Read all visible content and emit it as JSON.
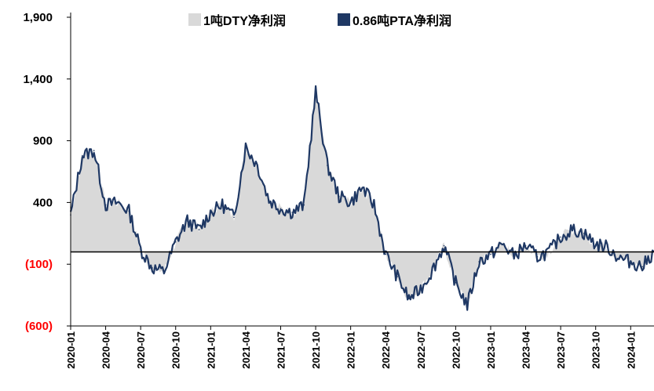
{
  "chart_data": {
    "type": "area",
    "title": "",
    "xlabel": "",
    "ylabel": "",
    "ylim": [
      -600,
      1900
    ],
    "y_ticks": [
      {
        "value": 1900,
        "label": "1,900",
        "color": "#000000"
      },
      {
        "value": 1400,
        "label": "1,400",
        "color": "#000000"
      },
      {
        "value": 900,
        "label": "900",
        "color": "#000000"
      },
      {
        "value": 400,
        "label": "400",
        "color": "#000000"
      },
      {
        "value": -100,
        "label": "(100)",
        "color": "#ff0000"
      },
      {
        "value": -600,
        "label": "(600)",
        "color": "#ff0000"
      }
    ],
    "x_ticks": [
      "2020-01",
      "2020-04",
      "2020-07",
      "2020-10",
      "2021-01",
      "2021-04",
      "2021-07",
      "2021-10",
      "2022-01",
      "2022-04",
      "2022-07",
      "2022-10",
      "2023-01",
      "2023-04",
      "2023-07",
      "2023-10",
      "2024-01"
    ],
    "x_start": "2020-01",
    "x_end": "2024-03",
    "grid": false,
    "legend_position": "top",
    "series": [
      {
        "name": "1吨DTY净利润",
        "kind": "area",
        "color": "#d9d9d9",
        "x": [
          "2020-01",
          "2020-02",
          "2020-03",
          "2020-04",
          "2020-05",
          "2020-06",
          "2020-07",
          "2020-08",
          "2020-09",
          "2020-10",
          "2020-11",
          "2020-12",
          "2021-01",
          "2021-02",
          "2021-03",
          "2021-04",
          "2021-05",
          "2021-06",
          "2021-07",
          "2021-08",
          "2021-09",
          "2021-10",
          "2021-11",
          "2021-12",
          "2022-01",
          "2022-02",
          "2022-03",
          "2022-04",
          "2022-05",
          "2022-06",
          "2022-07",
          "2022-08",
          "2022-09",
          "2022-10",
          "2022-11",
          "2022-12",
          "2023-01",
          "2023-02",
          "2023-03",
          "2023-04",
          "2023-05",
          "2023-06",
          "2023-07",
          "2023-08",
          "2023-09",
          "2023-10",
          "2023-11",
          "2023-12",
          "2024-01",
          "2024-02",
          "2024-03"
        ],
        "values": [
          300,
          780,
          820,
          380,
          400,
          330,
          20,
          -130,
          -160,
          80,
          250,
          180,
          320,
          380,
          280,
          850,
          700,
          420,
          350,
          320,
          380,
          1300,
          700,
          450,
          400,
          520,
          380,
          -20,
          -200,
          -380,
          -300,
          -150,
          50,
          -250,
          -430,
          -80,
          -20,
          60,
          -30,
          50,
          -40,
          0,
          120,
          180,
          150,
          60,
          40,
          -50,
          -80,
          -120,
          0
        ]
      },
      {
        "name": "0.86吨PTA净利润",
        "kind": "line",
        "color": "#1f3864",
        "x": [
          "2020-01",
          "2020-02",
          "2020-03",
          "2020-04",
          "2020-05",
          "2020-06",
          "2020-07",
          "2020-08",
          "2020-09",
          "2020-10",
          "2020-11",
          "2020-12",
          "2021-01",
          "2021-02",
          "2021-03",
          "2021-04",
          "2021-05",
          "2021-06",
          "2021-07",
          "2021-08",
          "2021-09",
          "2021-10",
          "2021-11",
          "2021-12",
          "2022-01",
          "2022-02",
          "2022-03",
          "2022-04",
          "2022-05",
          "2022-06",
          "2022-07",
          "2022-08",
          "2022-09",
          "2022-10",
          "2022-11",
          "2022-12",
          "2023-01",
          "2023-02",
          "2023-03",
          "2023-04",
          "2023-05",
          "2023-06",
          "2023-07",
          "2023-08",
          "2023-09",
          "2023-10",
          "2023-11",
          "2023-12",
          "2024-01",
          "2024-02",
          "2024-03"
        ],
        "values": [
          300,
          780,
          820,
          380,
          400,
          330,
          20,
          -130,
          -160,
          80,
          250,
          180,
          320,
          380,
          280,
          850,
          700,
          420,
          350,
          320,
          380,
          1300,
          700,
          450,
          400,
          520,
          380,
          -20,
          -200,
          -380,
          -300,
          -150,
          50,
          -250,
          -430,
          -80,
          -20,
          60,
          -30,
          50,
          -40,
          0,
          120,
          180,
          150,
          60,
          40,
          -50,
          -80,
          -120,
          0
        ]
      }
    ]
  }
}
